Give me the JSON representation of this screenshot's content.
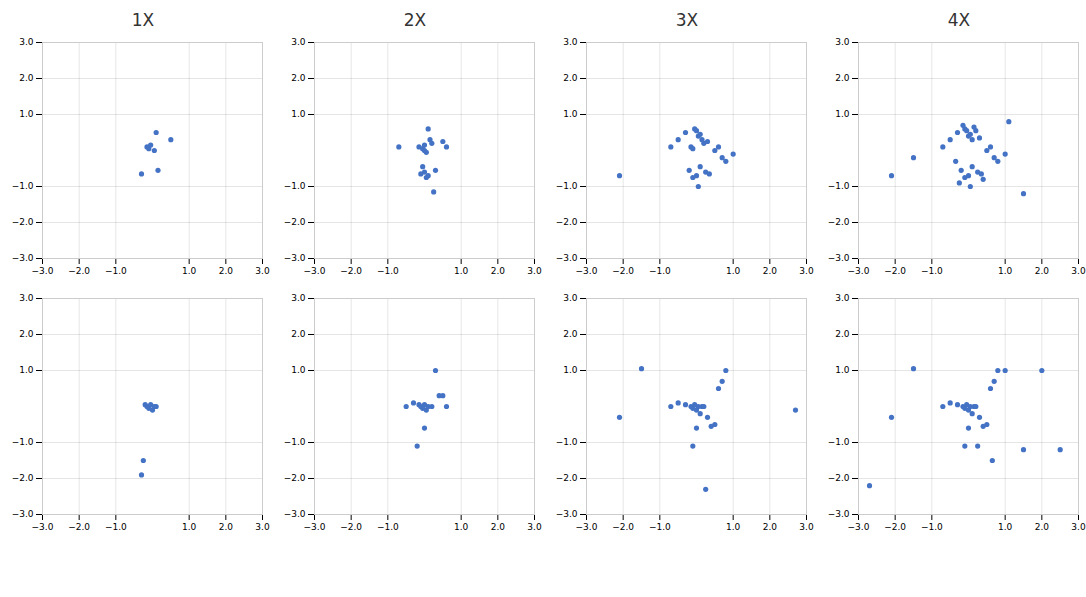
{
  "chart_data": [
    {
      "type": "scatter",
      "title": "1X",
      "color": "#4472C4",
      "xlim": [
        -3,
        3
      ],
      "ylim": [
        -3,
        3
      ],
      "xticks": [
        -3,
        -2,
        -1,
        1,
        2,
        3
      ],
      "yticks": [
        -3,
        -2,
        -1,
        1,
        2,
        3
      ],
      "grid": true,
      "x": [
        -0.15,
        -0.1,
        -0.05,
        0.05,
        0.1,
        0.5,
        0.15,
        -0.3
      ],
      "y": [
        0.1,
        0.05,
        0.15,
        0.0,
        0.5,
        0.3,
        -0.55,
        -0.65
      ]
    },
    {
      "type": "scatter",
      "title": "2X",
      "color": "#4472C4",
      "xlim": [
        -3,
        3
      ],
      "ylim": [
        -3,
        3
      ],
      "xticks": [
        -3,
        -2,
        -1,
        1,
        2,
        3
      ],
      "yticks": [
        -3,
        -2,
        -1,
        1,
        2,
        3
      ],
      "grid": true,
      "x": [
        -0.7,
        -0.15,
        -0.05,
        0.0,
        0.05,
        0.1,
        0.15,
        0.2,
        0.5,
        0.6,
        0.3,
        0.0,
        -0.1,
        0.1,
        0.05,
        -0.05,
        0.25,
        0.0
      ],
      "y": [
        0.1,
        0.1,
        0.05,
        0.15,
        -0.05,
        0.6,
        0.3,
        0.2,
        0.25,
        0.1,
        -0.55,
        -0.6,
        -0.65,
        -0.7,
        -0.75,
        -0.45,
        -1.15,
        0.0
      ]
    },
    {
      "type": "scatter",
      "title": "3X",
      "color": "#4472C4",
      "xlim": [
        -3,
        3
      ],
      "ylim": [
        -3,
        3
      ],
      "xticks": [
        -3,
        -2,
        -1,
        1,
        2,
        3
      ],
      "yticks": [
        -3,
        -2,
        -1,
        1,
        2,
        3
      ],
      "grid": true,
      "x": [
        -2.1,
        -0.7,
        -0.5,
        -0.3,
        -0.15,
        -0.1,
        -0.05,
        0.0,
        0.05,
        0.1,
        0.15,
        0.2,
        0.3,
        0.5,
        0.6,
        0.7,
        0.8,
        1.0,
        -0.2,
        0.25,
        0.35,
        0.0,
        -0.1,
        0.1,
        0.05
      ],
      "y": [
        -0.7,
        0.1,
        0.3,
        0.5,
        0.1,
        0.05,
        0.6,
        0.55,
        0.4,
        0.45,
        0.3,
        0.2,
        0.25,
        0.0,
        0.1,
        -0.2,
        -0.3,
        -0.1,
        -0.55,
        -0.6,
        -0.65,
        -0.7,
        -0.75,
        -0.45,
        -1.0
      ]
    },
    {
      "type": "scatter",
      "title": "4X",
      "color": "#4472C4",
      "xlim": [
        -3,
        3
      ],
      "ylim": [
        -3,
        3
      ],
      "xticks": [
        -3,
        -2,
        -1,
        1,
        2,
        3
      ],
      "yticks": [
        -3,
        -2,
        -1,
        1,
        2,
        3
      ],
      "grid": true,
      "x": [
        -2.1,
        -1.5,
        -0.7,
        -0.5,
        -0.3,
        -0.15,
        -0.1,
        -0.05,
        0.0,
        0.05,
        0.1,
        0.15,
        0.2,
        0.3,
        0.5,
        0.6,
        0.7,
        0.8,
        1.0,
        1.1,
        -0.2,
        0.25,
        0.35,
        0.0,
        -0.1,
        0.1,
        0.05,
        1.5,
        0.4,
        -0.25,
        -0.35
      ],
      "y": [
        -0.7,
        -0.2,
        0.1,
        0.3,
        0.5,
        0.7,
        0.6,
        0.55,
        0.4,
        0.45,
        0.3,
        0.65,
        0.55,
        0.35,
        0.0,
        0.1,
        -0.2,
        -0.3,
        -0.1,
        0.8,
        -0.55,
        -0.6,
        -0.65,
        -0.7,
        -0.75,
        -0.45,
        -1.0,
        -1.2,
        -0.8,
        -0.9,
        -0.3
      ]
    },
    {
      "type": "scatter",
      "color": "#4472C4",
      "xlim": [
        -3,
        3
      ],
      "ylim": [
        -3,
        3
      ],
      "xticks": [
        -3,
        -2,
        -1,
        1,
        2,
        3
      ],
      "yticks": [
        -3,
        -2,
        -1,
        1,
        2,
        3
      ],
      "grid": true,
      "x": [
        -0.2,
        -0.15,
        -0.1,
        -0.05,
        0.0,
        0.05,
        0.1,
        -0.25,
        -0.3
      ],
      "y": [
        0.05,
        0.0,
        -0.05,
        0.05,
        -0.1,
        0.0,
        0.0,
        -1.5,
        -1.9
      ]
    },
    {
      "type": "scatter",
      "color": "#4472C4",
      "xlim": [
        -3,
        3
      ],
      "ylim": [
        -3,
        3
      ],
      "xticks": [
        -3,
        -2,
        -1,
        1,
        2,
        3
      ],
      "yticks": [
        -3,
        -2,
        -1,
        1,
        2,
        3
      ],
      "grid": true,
      "x": [
        -0.5,
        -0.3,
        -0.15,
        -0.1,
        -0.05,
        0.0,
        0.05,
        0.1,
        0.2,
        0.3,
        0.4,
        0.5,
        0.6,
        0.0,
        -0.2
      ],
      "y": [
        0.0,
        0.1,
        0.05,
        0.0,
        -0.05,
        0.05,
        -0.1,
        0.0,
        0.0,
        1.0,
        0.3,
        0.3,
        0.0,
        -0.6,
        -1.1
      ]
    },
    {
      "type": "scatter",
      "color": "#4472C4",
      "xlim": [
        -3,
        3
      ],
      "ylim": [
        -3,
        3
      ],
      "xticks": [
        -3,
        -2,
        -1,
        1,
        2,
        3
      ],
      "yticks": [
        -3,
        -2,
        -1,
        1,
        2,
        3
      ],
      "grid": true,
      "x": [
        -2.1,
        -1.5,
        -0.7,
        -0.5,
        -0.3,
        -0.15,
        -0.1,
        -0.05,
        0.0,
        0.05,
        0.1,
        0.15,
        0.2,
        0.3,
        0.5,
        0.6,
        0.7,
        0.8,
        0.0,
        -0.1,
        0.25,
        0.4,
        2.7
      ],
      "y": [
        -0.3,
        1.05,
        0.0,
        0.1,
        0.05,
        0.0,
        -0.05,
        0.05,
        -0.1,
        0.0,
        -0.2,
        0.0,
        0.0,
        -0.3,
        -0.5,
        0.5,
        0.7,
        1.0,
        -0.6,
        -1.1,
        -2.3,
        -0.55,
        -0.1
      ]
    },
    {
      "type": "scatter",
      "color": "#4472C4",
      "xlim": [
        -3,
        3
      ],
      "ylim": [
        -3,
        3
      ],
      "xticks": [
        -3,
        -2,
        -1,
        1,
        2,
        3
      ],
      "yticks": [
        -3,
        -2,
        -1,
        1,
        2,
        3
      ],
      "grid": true,
      "x": [
        -2.7,
        -2.1,
        -1.5,
        -0.7,
        -0.5,
        -0.3,
        -0.15,
        -0.1,
        -0.05,
        0.0,
        0.05,
        0.1,
        0.15,
        0.2,
        0.3,
        0.5,
        0.6,
        0.7,
        0.8,
        1.0,
        2.5,
        1.5,
        0.0,
        -0.1,
        0.25,
        0.4,
        0.65,
        2.0
      ],
      "y": [
        -2.2,
        -0.3,
        1.05,
        0.0,
        0.1,
        0.05,
        0.0,
        -0.05,
        0.05,
        -0.1,
        0.0,
        -0.2,
        0.0,
        0.0,
        -0.3,
        -0.5,
        0.5,
        0.7,
        1.0,
        1.0,
        -1.2,
        -1.2,
        -0.6,
        -1.1,
        -1.1,
        -0.55,
        -1.5,
        1.0
      ]
    }
  ]
}
